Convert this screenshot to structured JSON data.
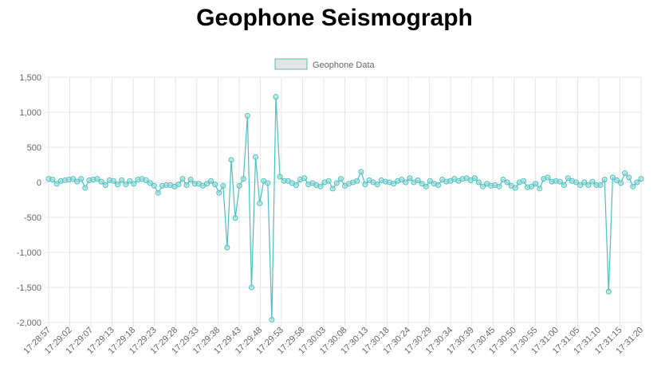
{
  "chart_data": {
    "type": "line",
    "title": "Geophone Seismograph",
    "legend": {
      "label": "Geophone Data",
      "position": "top"
    },
    "colors": {
      "line": "#4bc0c0",
      "point_fill": "#a8dede",
      "legend_fill": "#e4e4e4",
      "grid": "#e6e6e6",
      "tick_text": "#666666"
    },
    "grid": true,
    "ylim": [
      -2000,
      1500
    ],
    "y_ticks": [
      "1,500",
      "1,000",
      "500",
      "0",
      "-500",
      "-1,000",
      "-1,500",
      "-2,000"
    ],
    "y_tick_values": [
      1500,
      1000,
      500,
      0,
      -500,
      -1000,
      -1500,
      -2000
    ],
    "x_tick_labels": [
      "17:28:57",
      "17:29:02",
      "17:29:07",
      "17:29:13",
      "17:29:18",
      "17:29:23",
      "17:29:28",
      "17:29:33",
      "17:29:38",
      "17:29:43",
      "17:29:48",
      "17:29:53",
      "17:29:58",
      "17:30:03",
      "17:30:08",
      "17:30:13",
      "17:30:18",
      "17:30:24",
      "17:30:29",
      "17:30:34",
      "17:30:39",
      "17:30:45",
      "17:30:50",
      "17:30:55",
      "17:31:00",
      "17:31:05",
      "17:31:10",
      "17:31:15",
      "17:31:20"
    ],
    "values": [
      50,
      40,
      -20,
      20,
      30,
      40,
      50,
      10,
      50,
      -80,
      30,
      40,
      50,
      10,
      -40,
      30,
      20,
      -30,
      30,
      -30,
      20,
      -20,
      40,
      50,
      30,
      -10,
      -50,
      -150,
      -50,
      -40,
      -40,
      -60,
      -30,
      50,
      -40,
      40,
      -20,
      -20,
      -50,
      -20,
      20,
      -30,
      -150,
      -50,
      -930,
      320,
      -510,
      -50,
      50,
      950,
      -1500,
      360,
      -300,
      20,
      -10,
      -1960,
      1220,
      80,
      20,
      20,
      -10,
      -40,
      40,
      60,
      -30,
      -10,
      -40,
      -60,
      0,
      20,
      -90,
      -10,
      50,
      -50,
      -20,
      0,
      20,
      150,
      -30,
      30,
      0,
      -30,
      30,
      10,
      0,
      -20,
      20,
      40,
      0,
      60,
      0,
      30,
      -20,
      -60,
      20,
      -20,
      -40,
      40,
      10,
      20,
      50,
      20,
      50,
      60,
      30,
      60,
      0,
      -60,
      -20,
      -50,
      -40,
      -60,
      40,
      0,
      -50,
      -80,
      0,
      20,
      -70,
      -60,
      -20,
      -90,
      50,
      70,
      10,
      20,
      10,
      -40,
      60,
      20,
      0,
      -40,
      0,
      -40,
      10,
      -40,
      -40,
      40,
      -1560,
      70,
      30,
      -10,
      130,
      70,
      -60,
      0,
      50
    ]
  }
}
